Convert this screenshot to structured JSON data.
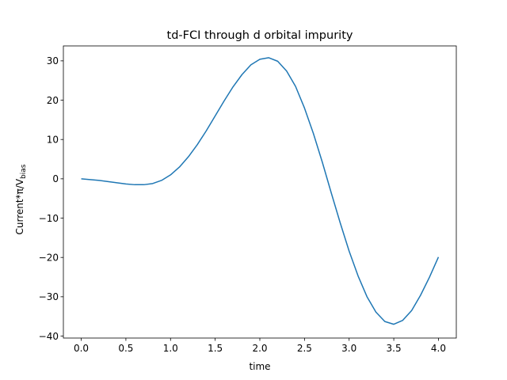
{
  "chart_data": {
    "type": "line",
    "title": "td-FCI through d orbital impurity",
    "xlabel": "time",
    "ylabel": {
      "main": "Current*π/V",
      "sub": "bias"
    },
    "xlim": [
      -0.2,
      4.2
    ],
    "ylim": [
      -40.5,
      33.8
    ],
    "xticks": [
      0.0,
      0.5,
      1.0,
      1.5,
      2.0,
      2.5,
      3.0,
      3.5,
      4.0
    ],
    "xtick_labels": [
      "0.0",
      "0.5",
      "1.0",
      "1.5",
      "2.0",
      "2.5",
      "3.0",
      "3.5",
      "4.0"
    ],
    "yticks": [
      30,
      20,
      10,
      0,
      -10,
      -20,
      -30,
      -40
    ],
    "ytick_labels": [
      "30",
      "20",
      "10",
      "0",
      "−10",
      "−20",
      "−30",
      "−40"
    ],
    "grid": false,
    "legend": "none",
    "line_color": "#1f77b4",
    "series": [
      {
        "x": [
          0.0,
          0.1,
          0.2,
          0.3,
          0.4,
          0.5,
          0.6,
          0.7,
          0.8,
          0.9,
          1.0,
          1.1,
          1.2,
          1.3,
          1.4,
          1.5,
          1.6,
          1.7,
          1.8,
          1.9,
          2.0,
          2.1,
          2.2,
          2.3,
          2.4,
          2.5,
          2.6,
          2.7,
          2.8,
          2.9,
          3.0,
          3.1,
          3.2,
          3.3,
          3.4,
          3.5,
          3.6,
          3.7,
          3.8,
          3.9,
          4.0
        ],
        "y": [
          0.0,
          -0.2,
          -0.4,
          -0.7,
          -1.0,
          -1.3,
          -1.5,
          -1.5,
          -1.2,
          -0.4,
          1.0,
          3.0,
          5.6,
          8.7,
          12.2,
          16.0,
          19.8,
          23.4,
          26.5,
          29.0,
          30.4,
          30.8,
          29.9,
          27.4,
          23.5,
          18.0,
          11.5,
          4.2,
          -3.6,
          -11.2,
          -18.4,
          -24.7,
          -30.0,
          -33.9,
          -36.3,
          -37.0,
          -36.0,
          -33.5,
          -29.6,
          -25.0,
          -19.9
        ]
      }
    ]
  }
}
